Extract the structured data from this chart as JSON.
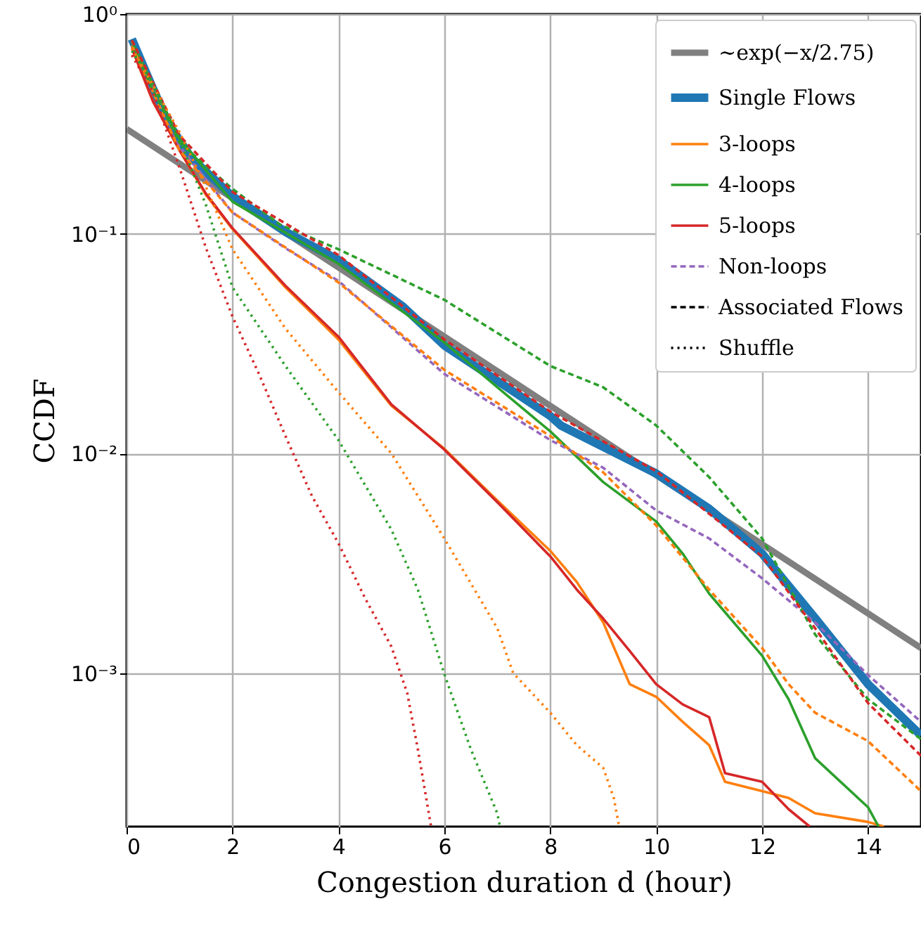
{
  "chart_data": {
    "type": "line",
    "xlabel": "Congestion duration d (hour)",
    "ylabel": "CCDF",
    "xlim": [
      0,
      15
    ],
    "xticks": [
      0,
      2,
      4,
      6,
      8,
      10,
      12,
      14
    ],
    "ylim": [
      0.0002,
      1
    ],
    "yticks": [
      {
        "value": 0.001,
        "label": "10⁻³"
      },
      {
        "value": 0.01,
        "label": "10⁻²"
      },
      {
        "value": 0.1,
        "label": "10⁻¹"
      },
      {
        "value": 1,
        "label": "10⁰"
      }
    ],
    "log": "y",
    "grid": true,
    "legend": "top right",
    "marker": "none",
    "series": [
      {
        "name": "∼exp(−x/2.75)",
        "color": "#808080",
        "line_style": "solid",
        "x": [
          0,
          15
        ],
        "values": [
          0.3,
          0.0013
        ]
      },
      {
        "name": "Single Flows",
        "color": "#1f77b4",
        "line_style": "solid",
        "x": [
          0.1,
          0.43,
          0.78,
          1.23,
          2,
          3,
          4,
          5.2,
          6,
          8,
          8.2,
          10,
          11,
          12,
          13,
          14,
          15
        ],
        "values": [
          0.77,
          0.5,
          0.32,
          0.22,
          0.148,
          0.102,
          0.076,
          0.047,
          0.031,
          0.0148,
          0.0134,
          0.0081,
          0.0056,
          0.0035,
          0.00178,
          0.00089,
          0.00052
        ]
      },
      {
        "name": "3-loops",
        "color": "#ff7f0e",
        "line_style": "solid",
        "x": [
          0.1,
          0.5,
          1,
          1.5,
          2,
          3,
          4,
          5,
          6,
          7,
          8,
          8.5,
          9,
          9.5,
          10,
          10.5,
          11,
          11.3,
          12,
          12.5,
          13,
          14,
          14.3
        ],
        "values": [
          0.7,
          0.4,
          0.24,
          0.15,
          0.105,
          0.057,
          0.033,
          0.0165,
          0.0105,
          0.0061,
          0.0036,
          0.0026,
          0.0017,
          0.00089,
          0.00078,
          0.0006,
          0.00047,
          0.00032,
          0.00029,
          0.00027,
          0.00023,
          0.00021,
          0.0002
        ]
      },
      {
        "name": "4-loops",
        "color": "#2ca02c",
        "line_style": "solid",
        "x": [
          0.1,
          1,
          2,
          4,
          6,
          7,
          8,
          9,
          10,
          10.5,
          11,
          12,
          12.5,
          13,
          14,
          14.2
        ],
        "values": [
          0.75,
          0.27,
          0.14,
          0.073,
          0.032,
          0.02,
          0.0126,
          0.0074,
          0.0049,
          0.0035,
          0.0023,
          0.0012,
          0.00076,
          0.00041,
          0.000245,
          0.0002
        ]
      },
      {
        "name": "5-loops",
        "color": "#d62728",
        "line_style": "solid",
        "x": [
          0.1,
          0.5,
          1,
          1.5,
          2,
          3,
          4,
          5,
          6,
          7,
          8,
          8.5,
          9,
          9.5,
          10,
          10.5,
          11,
          11.3,
          12,
          12.5,
          12.9
        ],
        "values": [
          0.7,
          0.4,
          0.24,
          0.152,
          0.106,
          0.058,
          0.034,
          0.0167,
          0.0104,
          0.006,
          0.0034,
          0.0024,
          0.00177,
          0.00126,
          0.00089,
          0.00072,
          0.00063,
          0.00035,
          0.00032,
          0.00024,
          0.0002
        ]
      },
      {
        "name": "Non-loops",
        "color": "#9467bd",
        "line_style": "dashed",
        "x": [
          0.1,
          1,
          2,
          3,
          4,
          6,
          8,
          9,
          10,
          11,
          12,
          13,
          14,
          15
        ],
        "values": [
          0.75,
          0.25,
          0.125,
          0.086,
          0.061,
          0.023,
          0.0115,
          0.0086,
          0.0055,
          0.0041,
          0.0027,
          0.0017,
          0.00098,
          0.0006
        ]
      },
      {
        "color": "#ff7f0e",
        "line_style": "dashed",
        "x": [
          0.1,
          1,
          2,
          4,
          6,
          8,
          9,
          10,
          11,
          12,
          12.5,
          13,
          14,
          15
        ],
        "values": [
          0.72,
          0.24,
          0.125,
          0.06,
          0.024,
          0.012,
          0.0082,
          0.0047,
          0.0024,
          0.0013,
          0.00089,
          0.00066,
          0.00049,
          0.00029
        ]
      },
      {
        "color": "#2ca02c",
        "line_style": "dashed",
        "x": [
          0.1,
          0.5,
          1,
          2,
          2.9,
          4,
          6,
          8,
          9,
          10,
          11,
          12,
          13,
          14,
          15
        ],
        "values": [
          0.75,
          0.45,
          0.26,
          0.16,
          0.11,
          0.085,
          0.05,
          0.025,
          0.02,
          0.0134,
          0.0078,
          0.0041,
          0.0015,
          0.00076,
          0.0005
        ]
      },
      {
        "color": "#d62728",
        "line_style": "dashed",
        "x": [
          0.1,
          1,
          2,
          4,
          6,
          8,
          10,
          12,
          13,
          14,
          15
        ],
        "values": [
          0.76,
          0.28,
          0.155,
          0.08,
          0.033,
          0.0155,
          0.0083,
          0.0034,
          0.0016,
          0.00073,
          0.00042
        ]
      },
      {
        "color": "#ff7f0e",
        "line_style": "dotted",
        "x": [
          0.1,
          1,
          1.5,
          2,
          3,
          4,
          5,
          6,
          7,
          7.3,
          8,
          8.5,
          9,
          9.2,
          9.3
        ],
        "values": [
          0.7,
          0.29,
          0.163,
          0.085,
          0.037,
          0.019,
          0.01,
          0.0041,
          0.0016,
          0.001,
          0.00066,
          0.00047,
          0.00037,
          0.00027,
          0.0002
        ]
      },
      {
        "color": "#2ca02c",
        "line_style": "dotted",
        "x": [
          0.1,
          0.5,
          1,
          1.5,
          2,
          3,
          4,
          5,
          5.5,
          6,
          6.5,
          7,
          7.05
        ],
        "values": [
          0.68,
          0.48,
          0.27,
          0.135,
          0.057,
          0.025,
          0.0115,
          0.0045,
          0.0024,
          0.00099,
          0.00045,
          0.00023,
          0.0002
        ]
      },
      {
        "color": "#d62728",
        "line_style": "dotted",
        "x": [
          0.1,
          0.5,
          1,
          1.5,
          2,
          2.5,
          3,
          3.5,
          4,
          4.5,
          5,
          5.3,
          5.5,
          5.75
        ],
        "values": [
          0.65,
          0.44,
          0.2,
          0.086,
          0.042,
          0.023,
          0.012,
          0.0064,
          0.0039,
          0.0022,
          0.00132,
          0.00081,
          0.00045,
          0.0002
        ]
      },
      {
        "name": "Associated Flows",
        "color": "#000000",
        "line_style": "dashed"
      },
      {
        "name": "Shuffle",
        "color": "#000000",
        "line_style": "dotted"
      }
    ]
  }
}
